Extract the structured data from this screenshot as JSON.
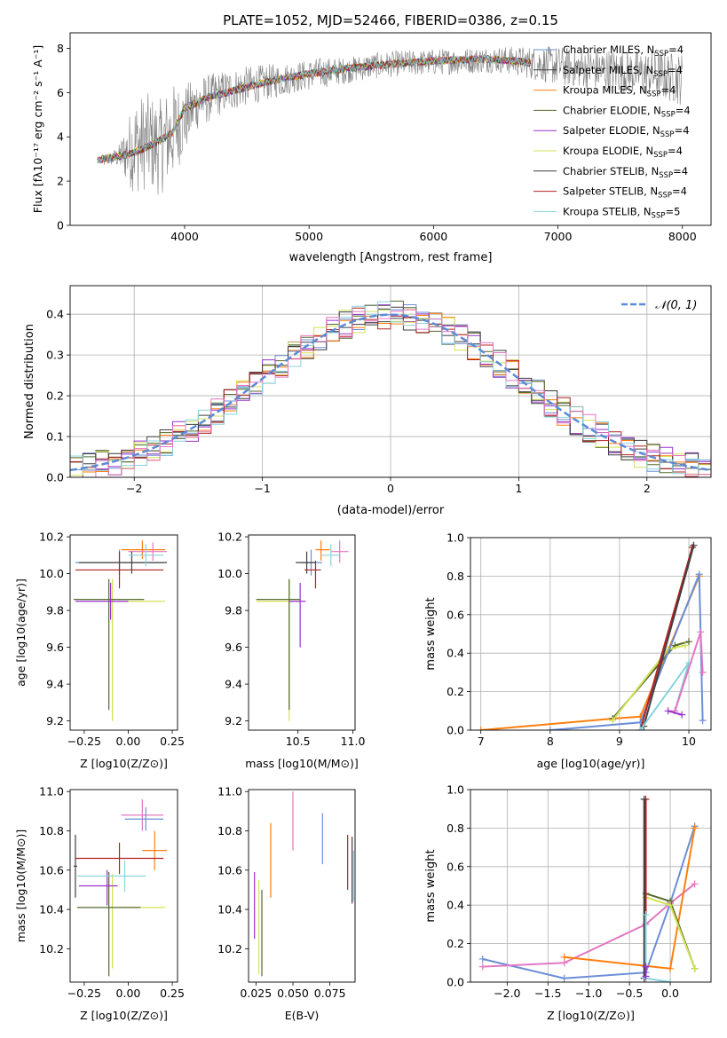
{
  "figure": {
    "title": "PLATE=1052, MJD=52466, FIBERID=0386, z=0.15"
  },
  "chart_data": [
    {
      "id": "spectrum",
      "type": "line",
      "title": "PLATE=1052, MJD=52466, FIBERID=0386, z=0.15",
      "xlabel": "wavelength [Angstrom, rest frame]",
      "ylabel": "Flux [fλ10⁻¹⁷ erg cm⁻² s⁻¹ A⁻¹]",
      "xlim": [
        3080,
        8230
      ],
      "ylim": [
        0,
        8.7
      ],
      "xticks": [
        4000,
        5000,
        6000,
        7000,
        8000
      ],
      "yticks": [
        0,
        2,
        4,
        6,
        8
      ],
      "grid": false,
      "legend_position": "upper-right",
      "data_series": {
        "name": "data",
        "color": "#808080",
        "x": [
          3330,
          3400,
          3470,
          3540,
          3600,
          3700,
          3800,
          3900,
          4000,
          4100,
          4300,
          4500,
          4700,
          4900,
          5100,
          5300,
          5500,
          5700,
          5900,
          6100,
          6300,
          6500,
          6700,
          6850,
          7000,
          7200,
          7400,
          7600,
          7800,
          8000
        ],
        "y": [
          2.9,
          3.0,
          3.1,
          3.3,
          3.6,
          3.8,
          3.5,
          4.2,
          4.8,
          5.5,
          6.0,
          6.3,
          6.5,
          6.7,
          6.9,
          7.0,
          7.2,
          7.3,
          7.35,
          7.4,
          7.45,
          7.5,
          7.4,
          7.3,
          7.2,
          7.1,
          7.0,
          6.9,
          6.8,
          6.6
        ],
        "noise": [
          0.3,
          0.3,
          0.5,
          1.5,
          2.2,
          2.2,
          2.2,
          2.2,
          1.6,
          1.2,
          1.0,
          0.9,
          0.8,
          0.7,
          0.7,
          0.6,
          0.6,
          0.6,
          0.6,
          0.6,
          0.6,
          0.6,
          0.7,
          0.8,
          0.9,
          0.9,
          1.0,
          1.0,
          1.1,
          1.2
        ]
      },
      "model_x": [
        3300,
        3400,
        3500,
        3600,
        3700,
        3800,
        3900,
        4000,
        4200,
        4400,
        4600,
        4800,
        5000,
        5200,
        5400,
        5600,
        5800,
        6000,
        6200,
        6400,
        6600,
        6780
      ],
      "model_y": [
        2.95,
        3.05,
        3.15,
        3.3,
        3.55,
        3.85,
        4.15,
        5.3,
        5.8,
        6.1,
        6.4,
        6.65,
        6.85,
        7.0,
        7.15,
        7.25,
        7.35,
        7.42,
        7.48,
        7.52,
        7.45,
        7.35
      ],
      "series": [
        {
          "name": "Chabrier MILES, N",
          "sub": "SSP",
          "suffix": "=4",
          "color": "#6b8fd6",
          "x_end": 6780
        },
        {
          "name": "Salpeter MILES, N",
          "sub": "SSP",
          "suffix": "=4",
          "color": "#404040",
          "x_end": 6780
        },
        {
          "name": "Kroupa MILES, N",
          "sub": "SSP",
          "suffix": "=4",
          "color": "#ff7f0e",
          "x_end": 6780
        },
        {
          "name": "Chabrier ELODIE, N",
          "sub": "SSP",
          "suffix": "=4",
          "color": "#556b2f",
          "x_end": 6780
        },
        {
          "name": "Salpeter ELODIE, N",
          "sub": "SSP",
          "suffix": "=4",
          "color": "#9932cc",
          "x_end": 6780
        },
        {
          "name": "Kroupa ELODIE, N",
          "sub": "SSP",
          "suffix": "=4",
          "color": "#d4e157",
          "x_end": 6780
        },
        {
          "name": "Chabrier STELIB, N",
          "sub": "SSP",
          "suffix": "=4",
          "color": "#3a3a3a",
          "x_end": 6780
        },
        {
          "name": "Salpeter STELIB, N",
          "sub": "SSP",
          "suffix": "=4",
          "color": "#b22222",
          "x_end": 6780
        },
        {
          "name": "Kroupa STELIB, N",
          "sub": "SSP",
          "suffix": "=5",
          "color": "#87d3dc",
          "x_end": 6780
        }
      ]
    },
    {
      "id": "residuals",
      "type": "step",
      "xlabel": "(data-model)/error",
      "ylabel": "Normed distribution",
      "xlim": [
        -2.5,
        2.5
      ],
      "ylim": [
        0,
        0.47
      ],
      "xticks": [
        -2,
        -1,
        0,
        1,
        2
      ],
      "yticks": [
        0.0,
        0.1,
        0.2,
        0.3,
        0.4
      ],
      "grid": true,
      "legend_position": "upper-right",
      "reference": {
        "name": "N(0,1)",
        "color": "#5b8bd6",
        "style": "dashed"
      },
      "bin_width": 0.1,
      "series_colors": [
        "#6b8fd6",
        "#404040",
        "#ff7f0e",
        "#556b2f",
        "#9932cc",
        "#d4e157",
        "#3a3a3a",
        "#b22222",
        "#87d3dc",
        "#e377c2"
      ]
    },
    {
      "id": "age-vs-Z",
      "type": "errorbar",
      "xlabel": "Z [log10(Z/Z⊙)]",
      "ylabel": "age  [log10(age/yr)]",
      "xlim": [
        -0.33,
        0.28
      ],
      "ylim": [
        9.15,
        10.21
      ],
      "xticks": [
        -0.25,
        0.0,
        0.25
      ],
      "yticks": [
        9.2,
        9.4,
        9.6,
        9.8,
        10.0,
        10.2
      ],
      "grid": false,
      "points": [
        {
          "x": -0.09,
          "xerr": [
            0.04,
            0.3
          ],
          "y": 9.85,
          "yerr": [
            0.65,
            0.12
          ],
          "color": "#d4e157"
        },
        {
          "x": -0.11,
          "xerr": [
            0.2,
            0.2
          ],
          "y": 9.86,
          "yerr": [
            0.6,
            0.11
          ],
          "color": "#556b2f"
        },
        {
          "x": -0.1,
          "xerr": [
            0.2,
            0.1
          ],
          "y": 9.85,
          "yerr": [
            0.1,
            0.1
          ],
          "color": "#9932cc"
        },
        {
          "x": -0.05,
          "xerr": [
            0.25,
            0.25
          ],
          "y": 10.06,
          "yerr": [
            0.07,
            0.07
          ],
          "color": "#6b8fd6"
        },
        {
          "x": -0.05,
          "xerr": [
            0.25,
            0.25
          ],
          "y": 10.02,
          "yerr": [
            0.1,
            0.1
          ],
          "color": "#b22222"
        },
        {
          "x": 0.08,
          "xerr": [
            0.12,
            0.13
          ],
          "y": 10.13,
          "yerr": [
            0.05,
            0.05
          ],
          "color": "#ff7f0e"
        },
        {
          "x": 0.14,
          "xerr": [
            0.14,
            0.08
          ],
          "y": 10.12,
          "yerr": [
            0.05,
            0.05
          ],
          "color": "#e377c2"
        },
        {
          "x": 0.02,
          "xerr": [
            0.3,
            0.2
          ],
          "y": 10.06,
          "yerr": [
            0.06,
            0.06
          ],
          "color": "#404040"
        },
        {
          "x": 0.1,
          "xerr": [
            0.1,
            0.1
          ],
          "y": 10.1,
          "yerr": [
            0.06,
            0.06
          ],
          "color": "#87d3dc"
        }
      ]
    },
    {
      "id": "age-vs-mass",
      "type": "errorbar",
      "xlabel": "mass [log10(M/M⊙)]",
      "ylabel": "",
      "xlim": [
        10.05,
        11.02
      ],
      "ylim": [
        9.15,
        10.21
      ],
      "xticks": [
        10.5,
        11.0
      ],
      "yticks": [
        9.2,
        9.4,
        9.6,
        9.8,
        10.0,
        10.2
      ],
      "grid": false,
      "points": [
        {
          "x": 10.42,
          "xerr": [
            0.3,
            0.12
          ],
          "y": 9.85,
          "yerr": [
            0.65,
            0.12
          ],
          "color": "#d4e157"
        },
        {
          "x": 10.42,
          "xerr": [
            0.3,
            0.1
          ],
          "y": 9.86,
          "yerr": [
            0.6,
            0.11
          ],
          "color": "#556b2f"
        },
        {
          "x": 10.52,
          "xerr": [
            0.1,
            0.05
          ],
          "y": 9.85,
          "yerr": [
            0.25,
            0.1
          ],
          "color": "#9932cc"
        },
        {
          "x": 10.62,
          "xerr": [
            0.1,
            0.1
          ],
          "y": 10.06,
          "yerr": [
            0.07,
            0.07
          ],
          "color": "#6b8fd6"
        },
        {
          "x": 10.66,
          "xerr": [
            0.1,
            0.05
          ],
          "y": 10.02,
          "yerr": [
            0.1,
            0.05
          ],
          "color": "#b22222"
        },
        {
          "x": 10.71,
          "xerr": [
            0.05,
            0.08
          ],
          "y": 10.13,
          "yerr": [
            0.06,
            0.05
          ],
          "color": "#ff7f0e"
        },
        {
          "x": 10.88,
          "xerr": [
            0.08,
            0.08
          ],
          "y": 10.12,
          "yerr": [
            0.06,
            0.06
          ],
          "color": "#e377c2"
        },
        {
          "x": 10.58,
          "xerr": [
            0.1,
            0.08
          ],
          "y": 10.06,
          "yerr": [
            0.06,
            0.06
          ],
          "color": "#404040"
        },
        {
          "x": 10.8,
          "xerr": [
            0.08,
            0.08
          ],
          "y": 10.1,
          "yerr": [
            0.06,
            0.06
          ],
          "color": "#87d3dc"
        }
      ]
    },
    {
      "id": "weight-vs-age",
      "type": "line",
      "xlabel": "age  [log10(age/yr)]",
      "ylabel": "mass weight",
      "xlim": [
        6.85,
        10.32
      ],
      "ylim": [
        0,
        1.0
      ],
      "xticks": [
        7,
        8,
        9,
        10
      ],
      "yticks": [
        0.0,
        0.2,
        0.4,
        0.6,
        0.8,
        1.0
      ],
      "grid": true,
      "series": [
        {
          "color": "#ff7f0e",
          "x": [
            7.0,
            8.9,
            9.3,
            10.15
          ],
          "y": [
            0.0,
            0.06,
            0.07,
            0.8
          ]
        },
        {
          "color": "#556b2f",
          "x": [
            8.9,
            9.8,
            10.0
          ],
          "y": [
            0.06,
            0.44,
            0.46
          ]
        },
        {
          "color": "#d4e157",
          "x": [
            8.9,
            9.7,
            9.95
          ],
          "y": [
            0.05,
            0.42,
            0.44
          ]
        },
        {
          "color": "#6b8fd6",
          "x": [
            8.0,
            9.3,
            10.15,
            10.2
          ],
          "y": [
            0.0,
            0.04,
            0.81,
            0.05
          ]
        },
        {
          "color": "#b22222",
          "x": [
            9.3,
            10.05
          ],
          "y": [
            0.0,
            0.95
          ]
        },
        {
          "color": "#404040",
          "x": [
            9.35,
            10.07
          ],
          "y": [
            0.02,
            0.96
          ]
        },
        {
          "color": "#87d3dc",
          "x": [
            9.3,
            10.0,
            9.8
          ],
          "y": [
            0.0,
            0.35,
            0.1
          ]
        },
        {
          "color": "#e377c2",
          "x": [
            9.8,
            10.17,
            10.2
          ],
          "y": [
            0.1,
            0.51,
            0.3
          ]
        },
        {
          "color": "#9932cc",
          "x": [
            9.7,
            9.9
          ],
          "y": [
            0.1,
            0.08
          ]
        }
      ]
    },
    {
      "id": "mass-vs-Z",
      "type": "errorbar",
      "xlabel": "Z [log10(Z/Z⊙)]",
      "ylabel": "mass [log10(M/M⊙)]",
      "xlim": [
        -0.33,
        0.28
      ],
      "ylim": [
        10.03,
        11.01
      ],
      "xticks": [
        -0.25,
        0.0,
        0.25
      ],
      "yticks": [
        10.2,
        10.4,
        10.6,
        10.8,
        11.0
      ],
      "grid": false,
      "points": [
        {
          "x": -0.09,
          "xerr": [
            0.04,
            0.3
          ],
          "y": 10.41,
          "yerr": [
            0.31,
            0.17
          ],
          "color": "#d4e157"
        },
        {
          "x": -0.11,
          "xerr": [
            0.18,
            0.18
          ],
          "y": 10.41,
          "yerr": [
            0.35,
            0.18
          ],
          "color": "#556b2f"
        },
        {
          "x": -0.12,
          "xerr": [
            0.16,
            0.06
          ],
          "y": 10.52,
          "yerr": [
            0.1,
            0.08
          ],
          "color": "#9932cc"
        },
        {
          "x": 0.08,
          "xerr": [
            0.12,
            0.12
          ],
          "y": 10.88,
          "yerr": [
            0.08,
            0.08
          ],
          "color": "#e377c2"
        },
        {
          "x": 0.1,
          "xerr": [
            0.12,
            0.1
          ],
          "y": 10.86,
          "yerr": [
            0.06,
            0.06
          ],
          "color": "#6b8fd6"
        },
        {
          "x": 0.15,
          "xerr": [
            0.07,
            0.07
          ],
          "y": 10.7,
          "yerr": [
            0.1,
            0.1
          ],
          "color": "#ff7f0e"
        },
        {
          "x": -0.05,
          "xerr": [
            0.25,
            0.25
          ],
          "y": 10.66,
          "yerr": [
            0.08,
            0.08
          ],
          "color": "#b22222"
        },
        {
          "x": -0.02,
          "xerr": [
            0.27,
            0.12
          ],
          "y": 10.57,
          "yerr": [
            0.08,
            0.08
          ],
          "color": "#87d3dc"
        },
        {
          "x": -0.3,
          "xerr": [
            0.01,
            0.01
          ],
          "y": 10.62,
          "yerr": [
            0.16,
            0.16
          ],
          "color": "#404040"
        }
      ]
    },
    {
      "id": "mass-vs-ebv",
      "type": "errorbar",
      "xlabel": "E(B-V)",
      "ylabel": "",
      "xlim": [
        0.02,
        0.092
      ],
      "ylim": [
        10.03,
        11.01
      ],
      "xticks": [
        0.025,
        0.05,
        0.075
      ],
      "yticks": [
        10.2,
        10.4,
        10.6,
        10.8,
        11.0
      ],
      "grid": false,
      "points": [
        {
          "x": 0.024,
          "xerr": [
            0,
            0
          ],
          "y": 10.42,
          "yerr": [
            0.17,
            0.17
          ],
          "color": "#9932cc"
        },
        {
          "x": 0.027,
          "xerr": [
            0,
            0
          ],
          "y": 10.31,
          "yerr": [
            0.24,
            0.24
          ],
          "color": "#d4e157"
        },
        {
          "x": 0.029,
          "xerr": [
            0,
            0
          ],
          "y": 10.28,
          "yerr": [
            0.22,
            0.22
          ],
          "color": "#556b2f"
        },
        {
          "x": 0.035,
          "xerr": [
            0,
            0
          ],
          "y": 10.65,
          "yerr": [
            0.19,
            0.19
          ],
          "color": "#ff7f0e"
        },
        {
          "x": 0.05,
          "xerr": [
            0,
            0
          ],
          "y": 10.85,
          "yerr": [
            0.15,
            0.15
          ],
          "color": "#e377c2"
        },
        {
          "x": 0.07,
          "xerr": [
            0,
            0
          ],
          "y": 10.76,
          "yerr": [
            0.13,
            0.13
          ],
          "color": "#6b8fd6"
        },
        {
          "x": 0.087,
          "xerr": [
            0,
            0
          ],
          "y": 10.64,
          "yerr": [
            0.14,
            0.14
          ],
          "color": "#b22222"
        },
        {
          "x": 0.09,
          "xerr": [
            0,
            0
          ],
          "y": 10.6,
          "yerr": [
            0.17,
            0.17
          ],
          "color": "#404040"
        },
        {
          "x": 0.091,
          "xerr": [
            0,
            0
          ],
          "y": 10.57,
          "yerr": [
            0.13,
            0.13
          ],
          "color": "#87d3dc"
        }
      ]
    },
    {
      "id": "weight-vs-Z",
      "type": "line",
      "xlabel": "Z [log10(Z/Z⊙)]",
      "ylabel": "mass weight",
      "xlim": [
        -2.45,
        0.5
      ],
      "ylim": [
        0,
        1.0
      ],
      "xticks": [
        -2.0,
        -1.5,
        -1.0,
        -0.5,
        0.0
      ],
      "yticks": [
        0.0,
        0.2,
        0.4,
        0.6,
        0.8,
        1.0
      ],
      "grid": true,
      "series": [
        {
          "color": "#6b8fd6",
          "x": [
            -2.3,
            -1.3,
            -0.3,
            0.0,
            0.3
          ],
          "y": [
            0.12,
            0.02,
            0.05,
            0.41,
            0.81
          ]
        },
        {
          "color": "#e377c2",
          "x": [
            -2.3,
            -1.3,
            -0.3,
            0.0,
            0.3
          ],
          "y": [
            0.08,
            0.1,
            0.3,
            0.41,
            0.51
          ]
        },
        {
          "color": "#ff7f0e",
          "x": [
            -1.3,
            0.0,
            0.3
          ],
          "y": [
            0.13,
            0.07,
            0.8
          ]
        },
        {
          "color": "#556b2f",
          "x": [
            -0.3,
            0.0,
            0.3
          ],
          "y": [
            0.46,
            0.42,
            0.07
          ]
        },
        {
          "color": "#d4e157",
          "x": [
            -0.3,
            0.0,
            0.3
          ],
          "y": [
            0.44,
            0.4,
            0.07
          ]
        },
        {
          "color": "#b22222",
          "x": [
            -0.3,
            -0.3
          ],
          "y": [
            0.02,
            0.95
          ]
        },
        {
          "color": "#404040",
          "x": [
            -0.32,
            -0.32
          ],
          "y": [
            0.02,
            0.95
          ]
        },
        {
          "color": "#87d3dc",
          "x": [
            -0.3,
            -0.3,
            0.0
          ],
          "y": [
            0.35,
            0.02,
            0.0
          ]
        },
        {
          "color": "#9932cc",
          "x": [
            -0.3,
            -0.3
          ],
          "y": [
            0.03,
            0.08
          ]
        }
      ]
    }
  ]
}
